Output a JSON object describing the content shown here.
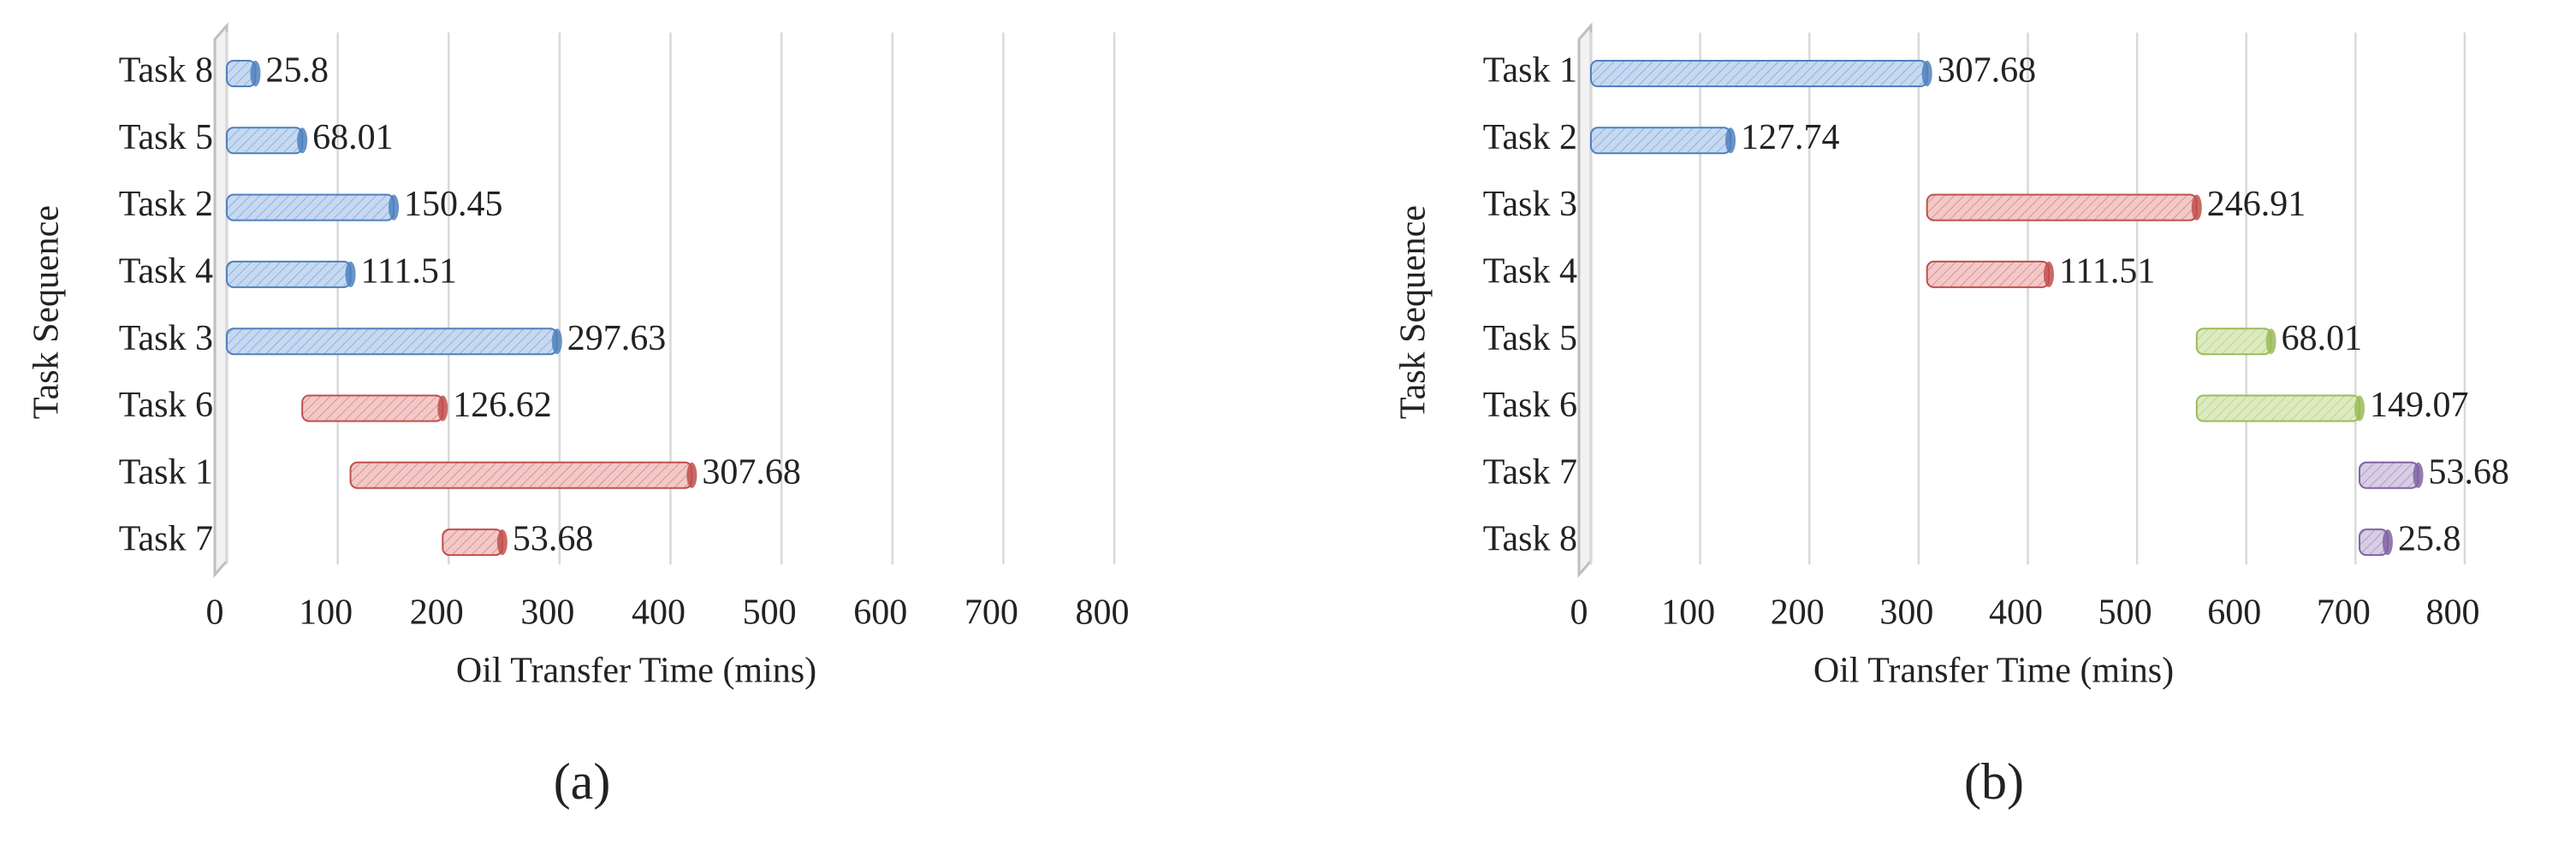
{
  "chart_data": [
    {
      "type": "gantt",
      "label": "(a)",
      "xlabel": "Oil Transfer Time (mins)",
      "ylabel": "Task Sequence",
      "categories": [
        "Task 8",
        "Task 5",
        "Task 2",
        "Task 4",
        "Task 3",
        "Task 6",
        "Task 1",
        "Task 7"
      ],
      "starts": [
        0,
        0,
        0,
        0,
        0,
        68.01,
        111.51,
        194.63
      ],
      "values": [
        25.8,
        68.01,
        150.45,
        111.51,
        297.63,
        126.62,
        307.68,
        53.68
      ],
      "colors": [
        "#c6d9f1",
        "#c6d9f1",
        "#c6d9f1",
        "#c6d9f1",
        "#c6d9f1",
        "#f2c9c8",
        "#f2c9c8",
        "#f2c9c8"
      ],
      "edge_colors": [
        "#4f81bd",
        "#4f81bd",
        "#4f81bd",
        "#4f81bd",
        "#4f81bd",
        "#c0504d",
        "#c0504d",
        "#c0504d"
      ],
      "xlim": [
        0,
        800
      ],
      "xticks": [
        0,
        100,
        200,
        300,
        400,
        500,
        600,
        700,
        800
      ],
      "grid": true
    },
    {
      "type": "gantt",
      "label": "(b)",
      "xlabel": "Oil Transfer Time (mins)",
      "ylabel": "Task Sequence",
      "categories": [
        "Task 1",
        "Task 2",
        "Task 3",
        "Task 4",
        "Task 5",
        "Task 6",
        "Task 7",
        "Task 8"
      ],
      "starts": [
        0,
        0,
        307.68,
        307.68,
        554.59,
        554.59,
        703.66,
        703.66
      ],
      "values": [
        307.68,
        127.74,
        246.91,
        111.51,
        68.01,
        149.07,
        53.68,
        25.8
      ],
      "colors": [
        "#c6d9f1",
        "#c6d9f1",
        "#f2c9c8",
        "#f2c9c8",
        "#dcebbf",
        "#dcebbf",
        "#d7cde4",
        "#d7cde4"
      ],
      "edge_colors": [
        "#4f81bd",
        "#4f81bd",
        "#c0504d",
        "#c0504d",
        "#9bbb59",
        "#9bbb59",
        "#8064a2",
        "#8064a2"
      ],
      "xlim": [
        0,
        800
      ],
      "xticks": [
        0,
        100,
        200,
        300,
        400,
        500,
        600,
        700,
        800
      ],
      "grid": true
    }
  ]
}
